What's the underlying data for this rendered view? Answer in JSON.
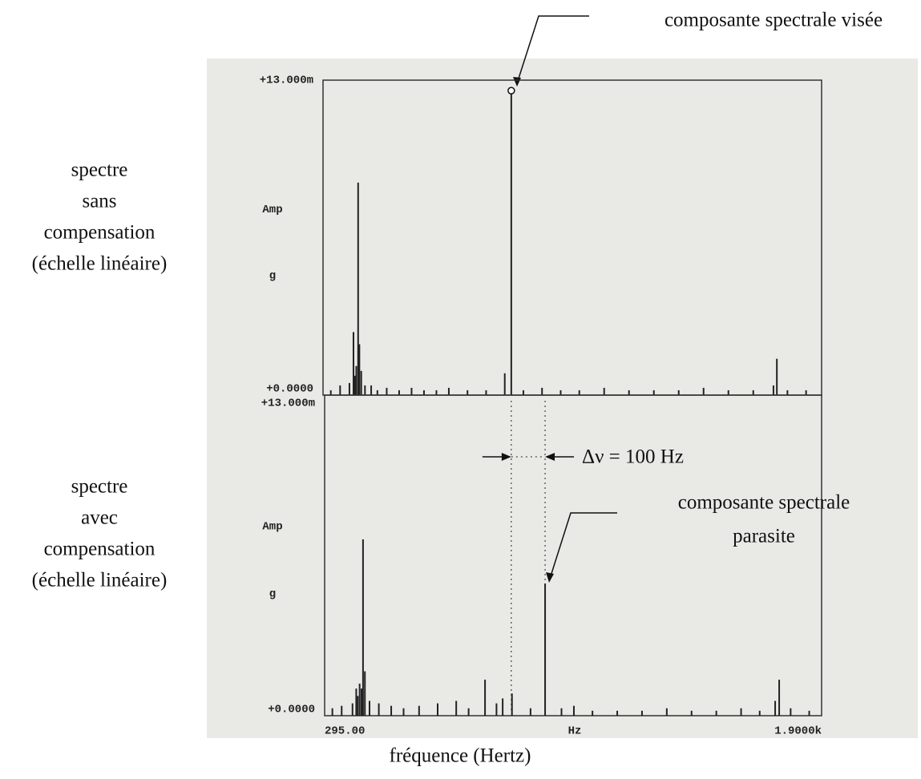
{
  "chart_data": [
    {
      "type": "spectrum",
      "side_label": [
        "spectre",
        "sans",
        "compensation",
        "(échelle linéaire)"
      ],
      "ylabel": "Amp",
      "yunit": "g",
      "annotation": "composante spectrale visée",
      "xlim": [
        295,
        1900
      ],
      "ylim": [
        0,
        0.013
      ],
      "yticks": [
        {
          "value": 0.013,
          "label": "+13.000m"
        },
        {
          "value": 0,
          "label": "+0.0000"
        }
      ],
      "color": "#222222",
      "x": [
        320,
        350,
        380,
        393,
        397,
        402,
        408,
        412,
        418,
        430,
        450,
        470,
        500,
        540,
        580,
        620,
        660,
        700,
        760,
        820,
        880,
        901,
        940,
        1000,
        1060,
        1120,
        1200,
        1280,
        1360,
        1440,
        1520,
        1600,
        1680,
        1745,
        1756,
        1790,
        1850
      ],
      "values": [
        0.0002,
        0.0004,
        0.0005,
        0.0026,
        0.0008,
        0.0012,
        0.00877,
        0.0021,
        0.001,
        0.0004,
        0.0004,
        0.0002,
        0.0003,
        0.0002,
        0.0003,
        0.0002,
        0.0002,
        0.0003,
        0.0002,
        0.0002,
        0.0009,
        0.0125,
        0.0002,
        0.0003,
        0.0002,
        0.0002,
        0.0003,
        0.0002,
        0.0002,
        0.0002,
        0.0003,
        0.0002,
        0.0002,
        0.0004,
        0.0015,
        0.0002,
        0.0002
      ]
    },
    {
      "type": "spectrum",
      "side_label": [
        "spectre",
        "avec",
        "compensation",
        "(échelle linéaire)"
      ],
      "ylabel": "Amp",
      "yunit": "g",
      "delta_label": "Δν = 100 Hz",
      "annotation": [
        "composante spectrale",
        "parasite"
      ],
      "xlabel": "Hz",
      "x_title": "fréquence (Hertz)",
      "xlim": [
        295,
        1900
      ],
      "ylim": [
        0,
        0.013
      ],
      "xticks": [
        {
          "value": 295,
          "label": "295.00"
        },
        {
          "value": 1900,
          "label": "1.9000k"
        }
      ],
      "yticks": [
        {
          "value": 0.013,
          "label": "+13.000m"
        },
        {
          "value": 0,
          "label": "+0.0000"
        }
      ],
      "color": "#222222",
      "x": [
        320,
        350,
        385,
        397,
        402,
        408,
        414,
        419,
        425,
        440,
        470,
        510,
        550,
        600,
        660,
        720,
        760,
        813,
        850,
        870,
        900,
        960,
        1007,
        1060,
        1100,
        1160,
        1240,
        1320,
        1400,
        1480,
        1560,
        1640,
        1700,
        1750,
        1763,
        1800,
        1860
      ],
      "values": [
        0.0003,
        0.0004,
        0.0005,
        0.0011,
        0.0008,
        0.0013,
        0.0011,
        0.00715,
        0.0018,
        0.0006,
        0.0005,
        0.0004,
        0.0003,
        0.0004,
        0.0005,
        0.0006,
        0.0003,
        0.00146,
        0.0005,
        0.0007,
        0.0009,
        0.0003,
        0.00536,
        0.0003,
        0.0004,
        0.0002,
        0.0002,
        0.0002,
        0.0003,
        0.0002,
        0.0002,
        0.0003,
        0.0002,
        0.0006,
        0.00146,
        0.0003,
        0.0002
      ]
    }
  ]
}
